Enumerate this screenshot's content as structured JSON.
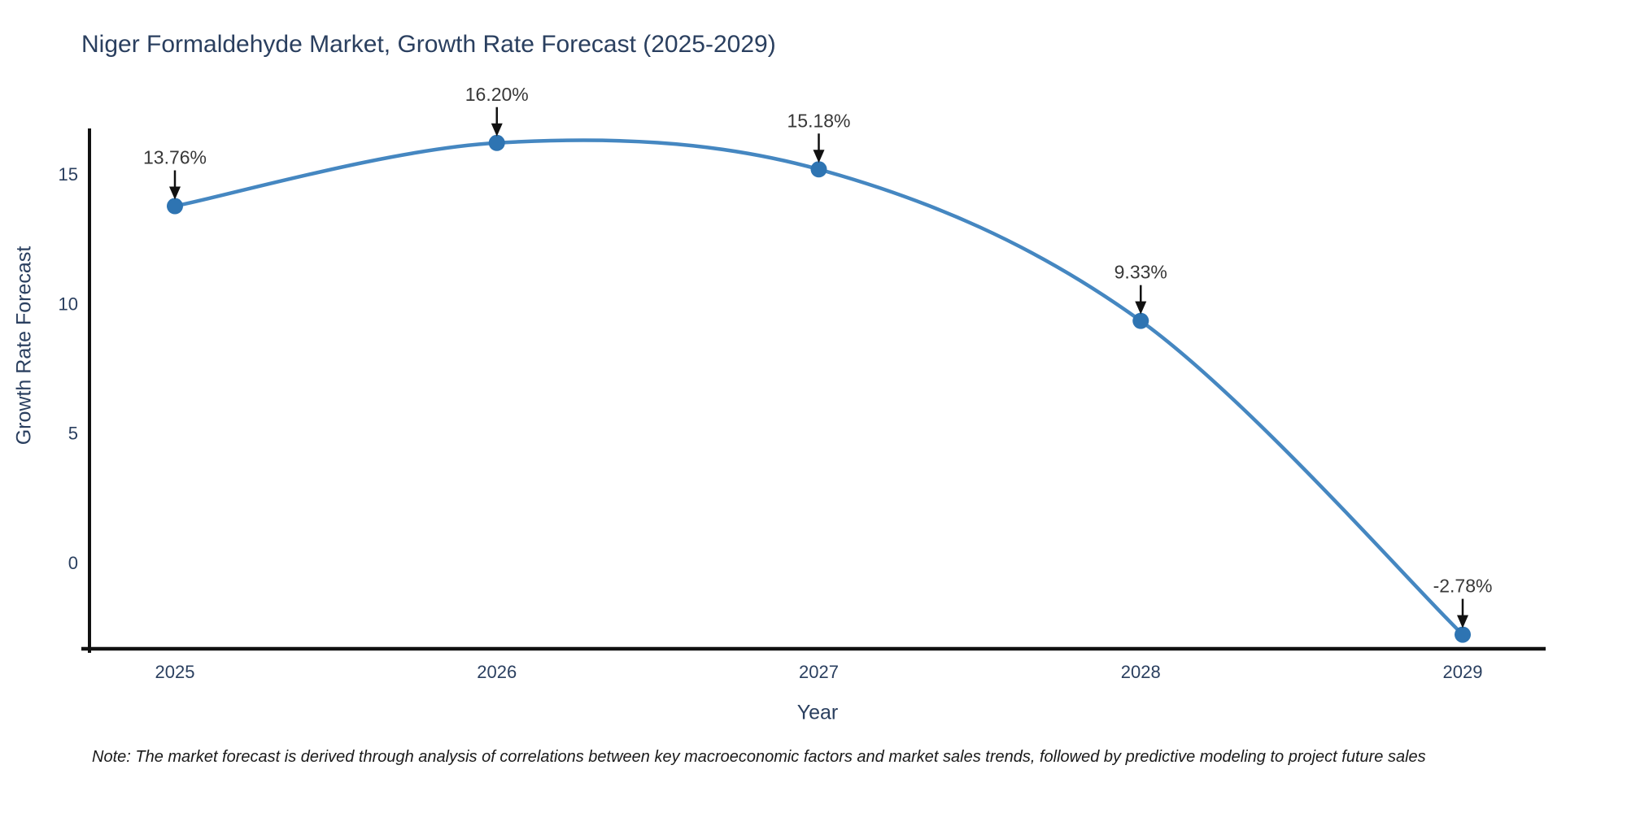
{
  "figure": {
    "background": "#ffffff",
    "title": "Niger Formaldehyde Market, Growth Rate Forecast (2025-2029)",
    "note": "Note: The market forecast is derived through analysis of correlations between key macroeconomic factors and market sales trends, followed by predictive modeling to project future sales"
  },
  "chart_data": {
    "type": "line",
    "line_shape": "spline",
    "title": "Niger Formaldehyde Market, Growth Rate Forecast (2025-2029)",
    "xlabel": "Year",
    "ylabel": "Growth Rate Forecast",
    "categories": [
      "2025",
      "2026",
      "2027",
      "2028",
      "2029"
    ],
    "x": [
      2025,
      2026,
      2027,
      2028,
      2029
    ],
    "series": [
      {
        "name": "Growth Rate Forecast",
        "values": [
          13.76,
          16.2,
          15.18,
          9.33,
          -2.78
        ]
      }
    ],
    "point_labels": [
      "13.76%",
      "16.20%",
      "15.18%",
      "9.33%",
      "-2.78%"
    ],
    "yticks": [
      0,
      5,
      10,
      15
    ],
    "ylim": [
      -3.4,
      16.7
    ],
    "grid": false,
    "legend": false,
    "markers": true,
    "annotations_have_arrows": true
  },
  "style": {
    "line_color": "#4587c1",
    "marker_color": "#2e74b2",
    "axis_color": "#111111",
    "tick_text_color": "#2a3f5f",
    "annotation_text_color": "#383838",
    "title_color": "#2a3f5f"
  }
}
